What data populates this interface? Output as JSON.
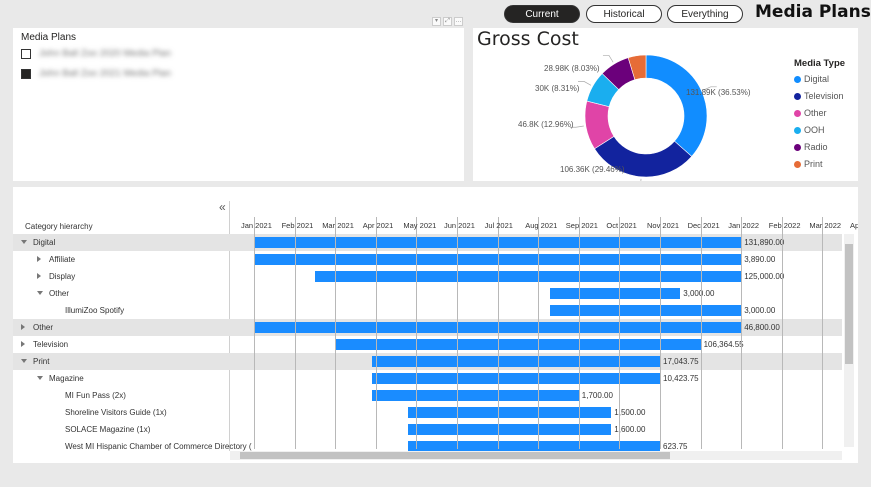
{
  "nav": {
    "current": "Current",
    "historical": "Historical",
    "everything": "Everything"
  },
  "page_title": "Media Plans",
  "slicer": {
    "title": "Media Plans",
    "items": [
      {
        "label": "John Ball Zoo 2020 Media Plan",
        "checked": false
      },
      {
        "label": "John Ball Zoo 2021 Media Plan",
        "checked": true
      }
    ]
  },
  "donut": {
    "title": "Gross Cost",
    "legend_title": "Media Type",
    "labels": {
      "digital": "131.89K (36.53%)",
      "television": "106.36K (29.46%)",
      "other": "46.8K (12.96%)",
      "ooh": "30K (8.31%)",
      "radio": "28.98K (8.03%)"
    }
  },
  "chart_data": {
    "type": "pie",
    "title": "Gross Cost",
    "legend_title": "Media Type",
    "categories": [
      "Digital",
      "Television",
      "Other",
      "OOH",
      "Radio",
      "Print"
    ],
    "values": [
      131890,
      106364.55,
      46800,
      30000,
      28980,
      17043.75
    ],
    "percent": [
      36.53,
      29.46,
      12.96,
      8.31,
      8.03,
      4.72
    ],
    "colors": [
      "#118dff",
      "#12239e",
      "#e044a7",
      "#1aaeef",
      "#6b007b",
      "#e66c37"
    ],
    "donut": true,
    "legend_position": "right"
  },
  "gantt": {
    "collapse_icon": "«",
    "category_header": "Category hierarchy",
    "months": [
      "Jan 2021",
      "Feb 2021",
      "Mar 2021",
      "Apr 2021",
      "May 2021",
      "Jun 2021",
      "Jul 2021",
      "Aug 2021",
      "Sep 2021",
      "Oct 2021",
      "Nov 2021",
      "Dec 2021",
      "Jan 2022",
      "Feb 2022",
      "Mar 2022",
      "Apr 2022",
      "May 2022",
      "Jun 2022",
      "Jul 2022",
      "Aug 2"
    ],
    "rows": [
      {
        "label": "Digital",
        "level": 0,
        "caret": "down",
        "shade": true,
        "start": 0,
        "end": 12,
        "value": "131,890.00"
      },
      {
        "label": "Affiliate",
        "level": 1,
        "caret": "right",
        "shade": false,
        "start": 0,
        "end": 12,
        "value": "3,890.00"
      },
      {
        "label": "Display",
        "level": 1,
        "caret": "right",
        "shade": false,
        "start": 1.5,
        "end": 12,
        "value": "125,000.00"
      },
      {
        "label": "Other",
        "level": 1,
        "caret": "down",
        "shade": false,
        "start": 7.3,
        "end": 10.5,
        "value": "3,000.00"
      },
      {
        "label": "IllumiZoo Spotify",
        "level": 2,
        "caret": "",
        "shade": false,
        "start": 7.3,
        "end": 12,
        "value": "3,000.00"
      },
      {
        "label": "Other",
        "level": 0,
        "caret": "right",
        "shade": true,
        "start": 0,
        "end": 12,
        "value": "46,800.00"
      },
      {
        "label": "Television",
        "level": 0,
        "caret": "right",
        "shade": false,
        "start": 2,
        "end": 11,
        "value": "106,364.55"
      },
      {
        "label": "Print",
        "level": 0,
        "caret": "down",
        "shade": true,
        "start": 2.9,
        "end": 10,
        "value": "17,043.75"
      },
      {
        "label": "Magazine",
        "level": 1,
        "caret": "down",
        "shade": false,
        "start": 2.9,
        "end": 10,
        "value": "10,423.75"
      },
      {
        "label": "MI Fun Pass (2x)",
        "level": 2,
        "caret": "",
        "shade": false,
        "start": 2.9,
        "end": 8,
        "value": "1,700.00"
      },
      {
        "label": "Shoreline Visitors Guide (1x)",
        "level": 2,
        "caret": "",
        "shade": false,
        "start": 3.8,
        "end": 8.8,
        "value": "1,500.00"
      },
      {
        "label": "SOLACE Magazine (1x)",
        "level": 2,
        "caret": "",
        "shade": false,
        "start": 3.8,
        "end": 8.8,
        "value": "1,600.00"
      },
      {
        "label": "West MI Hispanic Chamber of Commerce Directory (",
        "level": 2,
        "caret": "",
        "shade": false,
        "start": 3.8,
        "end": 10,
        "value": "623.75"
      }
    ]
  }
}
